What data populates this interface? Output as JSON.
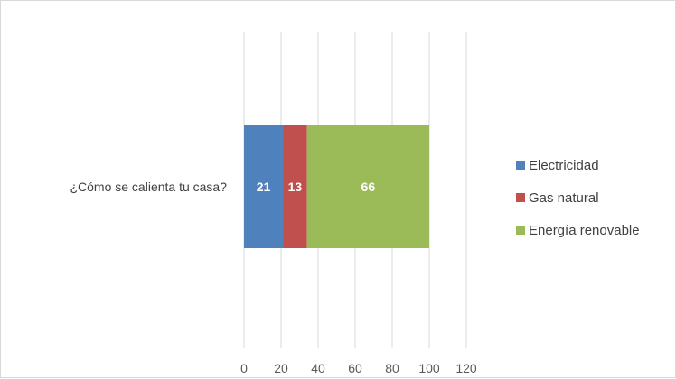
{
  "chart_data": {
    "type": "bar",
    "orientation": "horizontal",
    "stacked": true,
    "categories": [
      "¿Cómo se calienta tu casa?"
    ],
    "series": [
      {
        "name": "Electricidad",
        "values": [
          21
        ],
        "color": "#4f81bd"
      },
      {
        "name": "Gas natural",
        "values": [
          13
        ],
        "color": "#c0504d"
      },
      {
        "name": "Energía renovable",
        "values": [
          66
        ],
        "color": "#9bbb59"
      }
    ],
    "xlim": [
      0,
      120
    ],
    "xticks": [
      0,
      20,
      40,
      60,
      80,
      100,
      120
    ],
    "grid": true,
    "legend_position": "right",
    "data_labels": true
  }
}
